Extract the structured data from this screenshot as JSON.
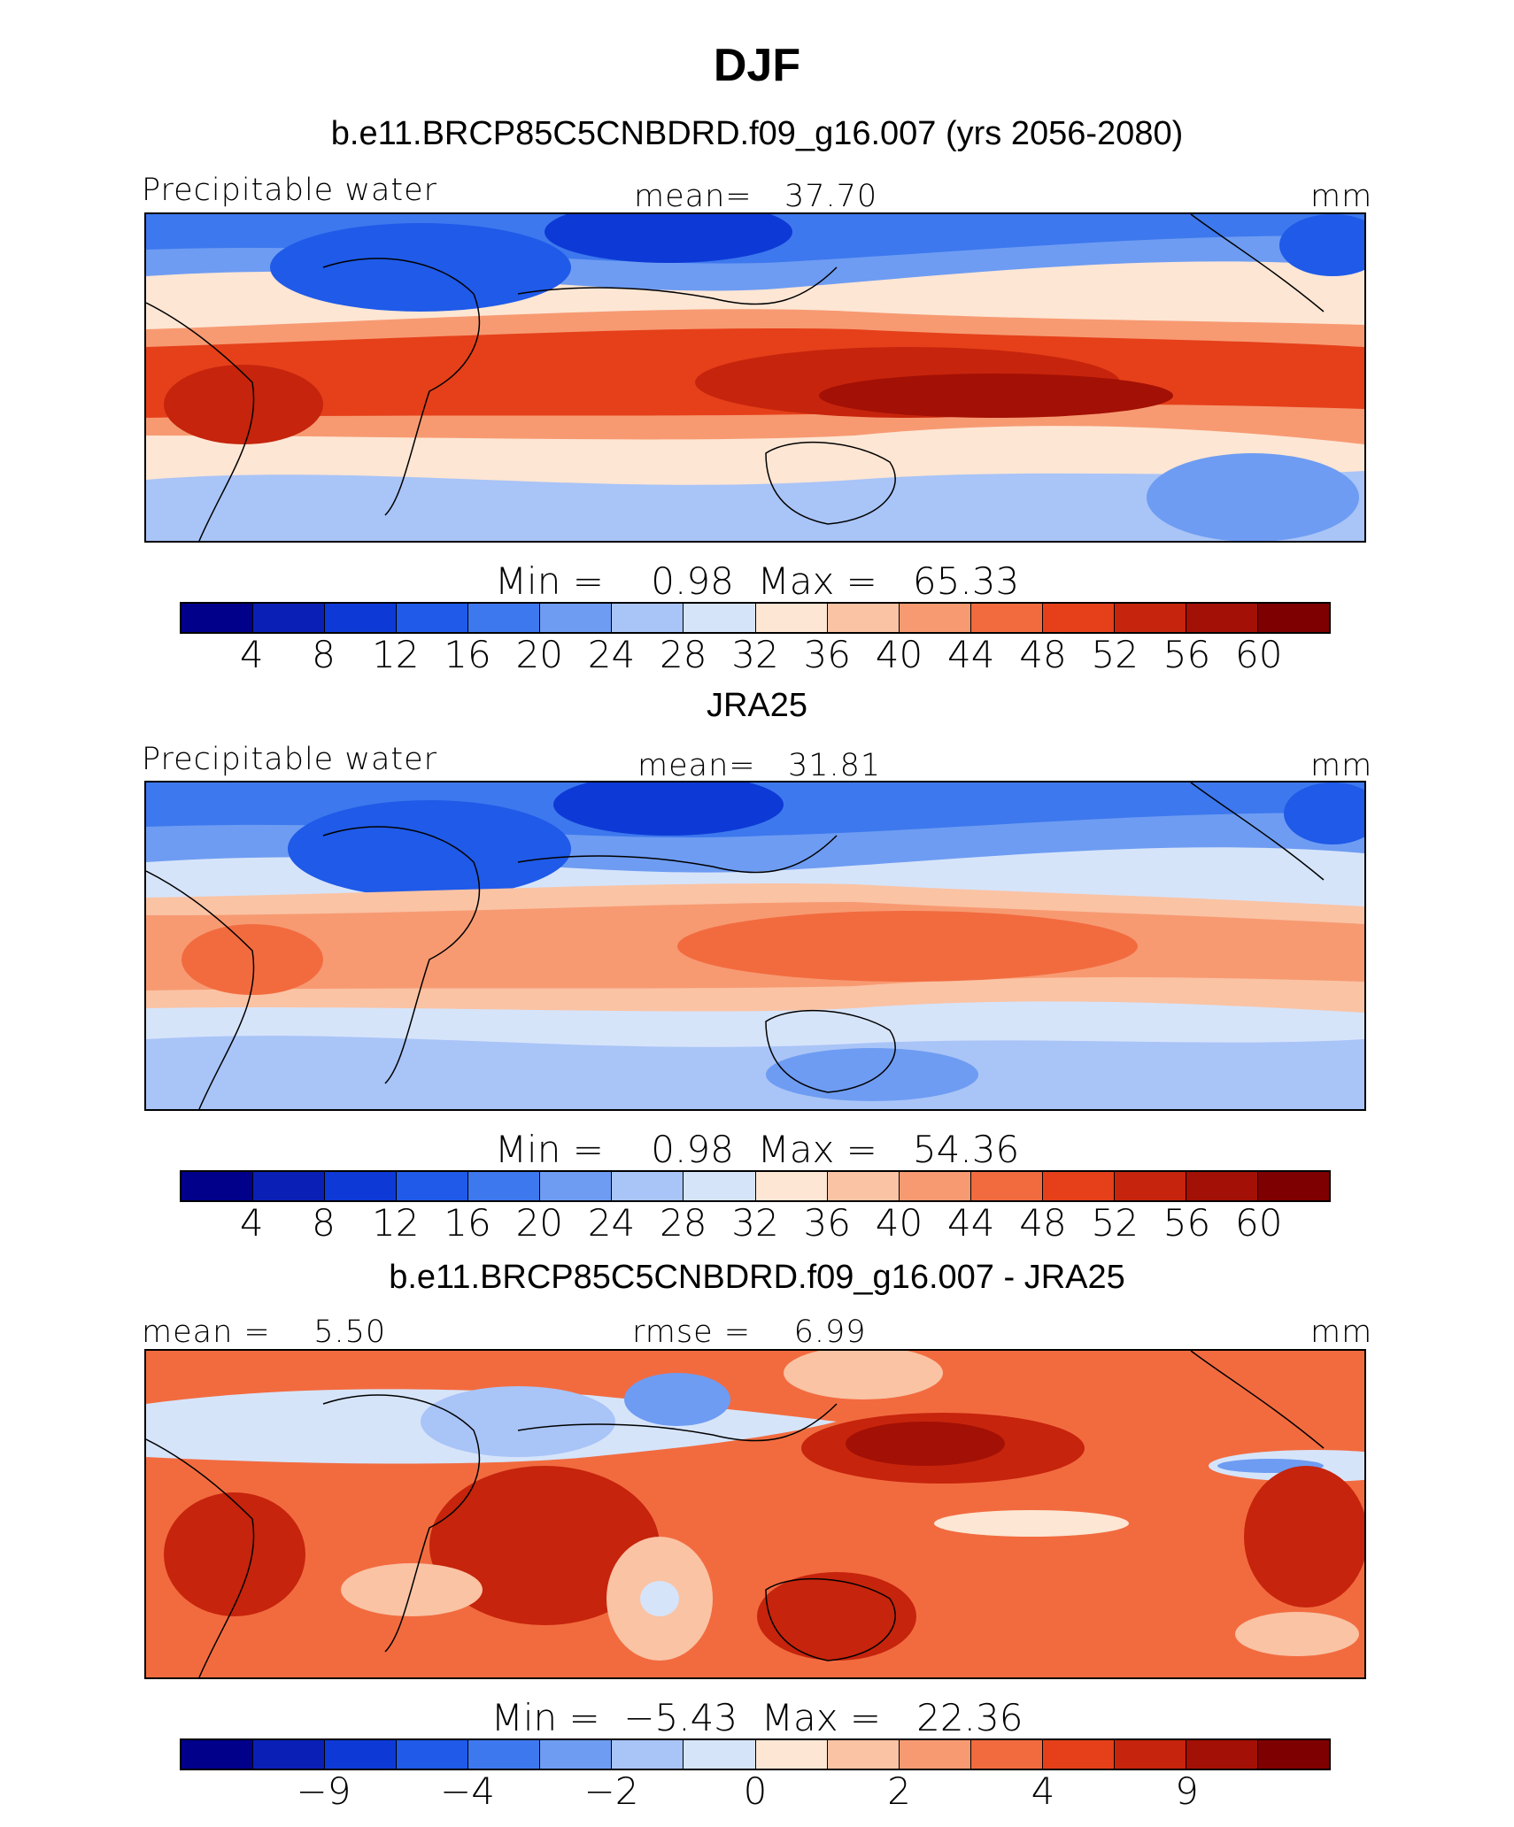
{
  "title": "DJF",
  "palette": [
    "#00008b",
    "#0a1fb5",
    "#0d3ad6",
    "#1f5ae8",
    "#3d78ee",
    "#6e9cf2",
    "#a9c4f7",
    "#d6e4fa",
    "#fde6d4",
    "#fac3a4",
    "#f79a72",
    "#f26b3f",
    "#e5401a",
    "#c6240c",
    "#a31005",
    "#7f0000"
  ],
  "panels": [
    {
      "case_title": "b.e11.BRCP85C5CNBDRD.f09_g16.007 (yrs 2056-2080)",
      "left_label": "Precipitable water",
      "center_label": "mean=   37.70",
      "right_label": "mm",
      "min_max": "Min =    0.98  Max =   65.33",
      "tick_labels": [
        "4",
        "8",
        "12",
        "16",
        "20",
        "24",
        "28",
        "32",
        "36",
        "40",
        "44",
        "48",
        "52",
        "56",
        "60"
      ]
    },
    {
      "case_title": "JRA25",
      "left_label": "Precipitable water",
      "center_label": "mean=   31.81",
      "right_label": "mm",
      "min_max": "Min =    0.98  Max =   54.36",
      "tick_labels": [
        "4",
        "8",
        "12",
        "16",
        "20",
        "24",
        "28",
        "32",
        "36",
        "40",
        "44",
        "48",
        "52",
        "56",
        "60"
      ]
    },
    {
      "case_title": "b.e11.BRCP85C5CNBDRD.f09_g16.007 - JRA25",
      "left_label": "mean =    5.50",
      "center_label": "rmse =    6.99",
      "right_label": "mm",
      "min_max": "Min =  −5.43  Max =   22.36",
      "tick_labels": [
        "−9",
        "−4",
        "−2",
        "0",
        "2",
        "4",
        "9"
      ]
    }
  ]
}
